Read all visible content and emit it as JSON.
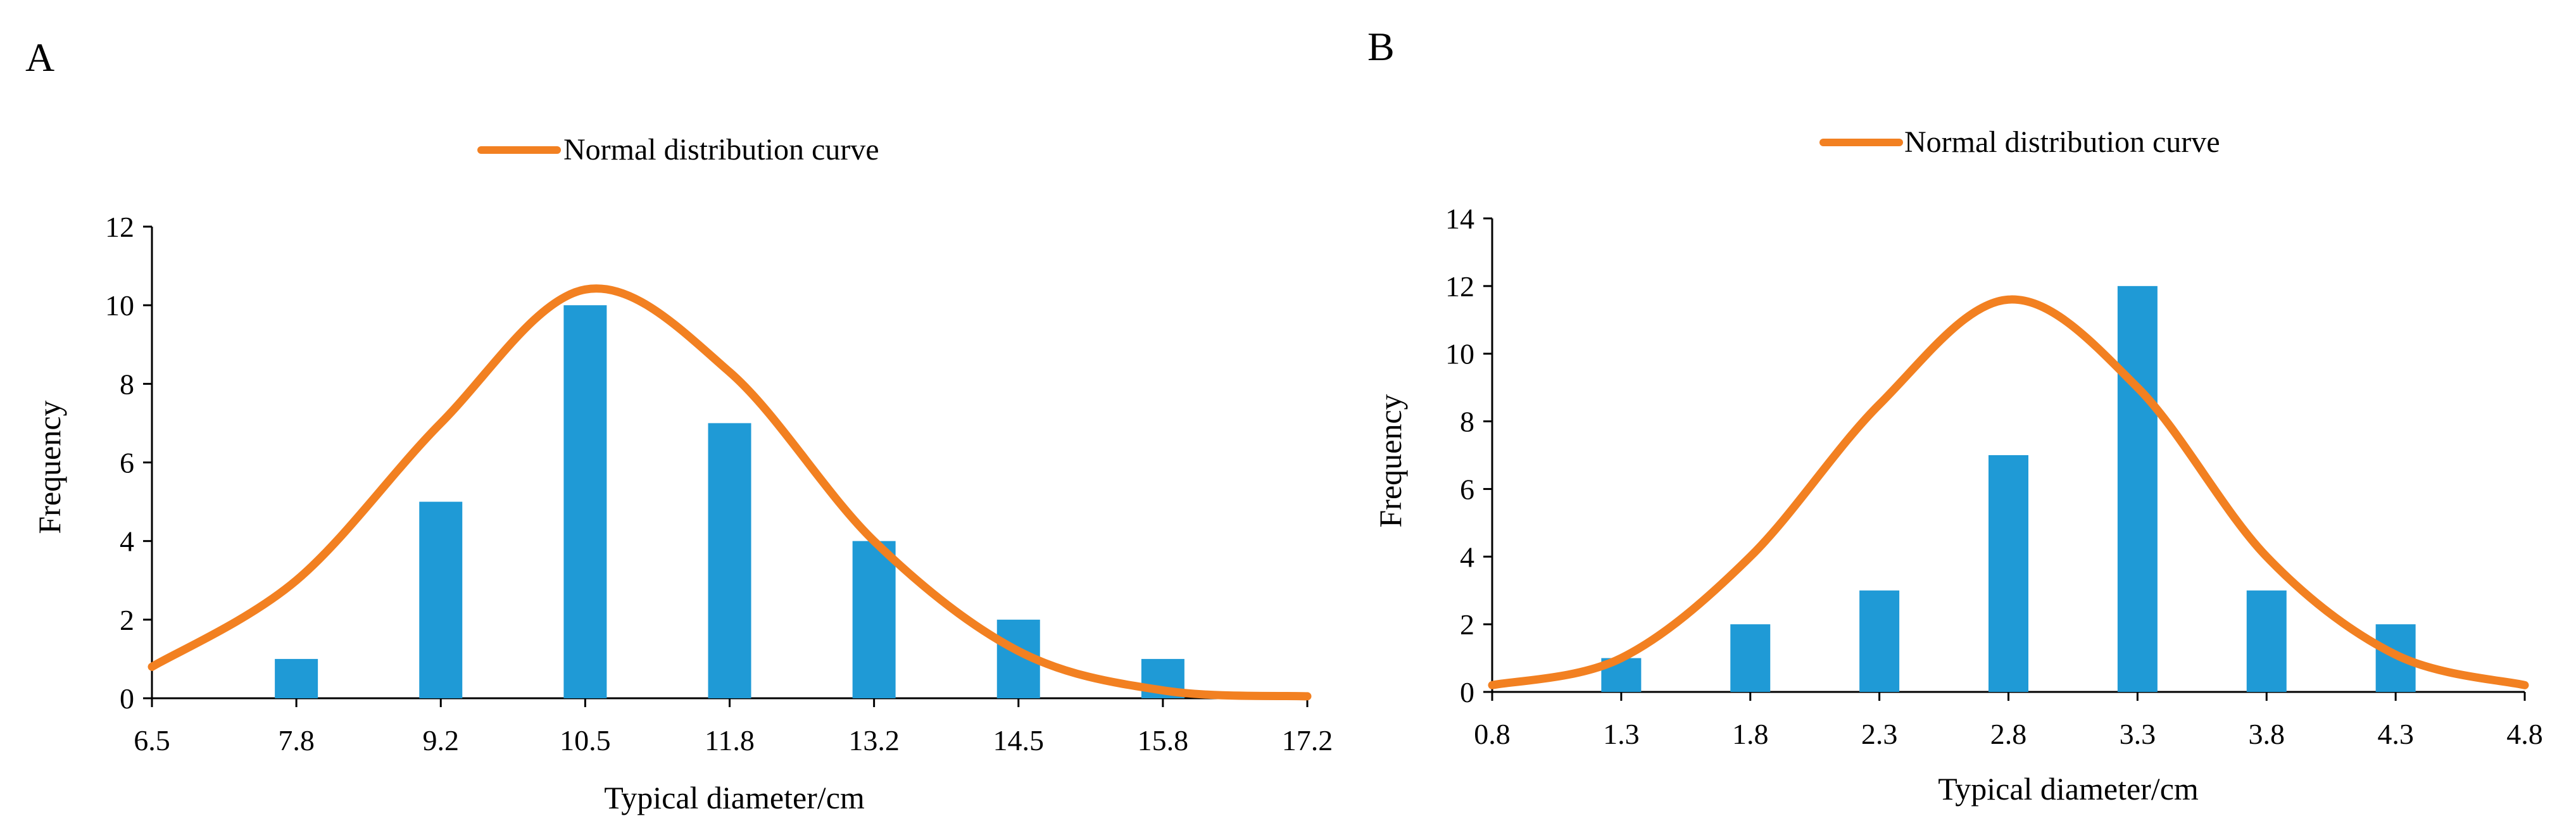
{
  "colors": {
    "bar": "#1F9AD6",
    "curve": "#F28021",
    "axis": "#000000"
  },
  "chart_data": [
    {
      "panel_label": "A",
      "type": "bar",
      "legend_label": "Normal distribution curve",
      "legend_position": "top-center",
      "xlabel": "Typical diameter/cm",
      "ylabel": "Frequency",
      "ylim": [
        0,
        12
      ],
      "ytick_step": 2,
      "y_ticks": [
        "0",
        "2",
        "4",
        "6",
        "8",
        "10",
        "12"
      ],
      "categories": [
        "6.5",
        "7.8",
        "9.2",
        "10.5",
        "11.8",
        "13.2",
        "14.5",
        "15.8",
        "17.2"
      ],
      "values": [
        0,
        1,
        5,
        10,
        7,
        4,
        2,
        1,
        0
      ],
      "curve": [
        0.8,
        3.0,
        7.0,
        10.4,
        8.3,
        4.0,
        1.2,
        0.2,
        0.05
      ],
      "grid": false
    },
    {
      "panel_label": "B",
      "type": "bar",
      "legend_label": "Normal distribution curve",
      "legend_position": "top-center",
      "xlabel": "Typical diameter/cm",
      "ylabel": "Frequency",
      "ylim": [
        0,
        14
      ],
      "ytick_step": 2,
      "y_ticks": [
        "0",
        "2",
        "4",
        "6",
        "8",
        "10",
        "12",
        "14"
      ],
      "categories": [
        "0.8",
        "1.3",
        "1.8",
        "2.3",
        "2.8",
        "3.3",
        "3.8",
        "4.3",
        "4.8"
      ],
      "values": [
        0,
        1,
        2,
        3,
        7,
        12,
        3,
        2,
        0
      ],
      "curve": [
        0.2,
        1.0,
        4.0,
        8.5,
        11.6,
        9.0,
        4.0,
        1.1,
        0.2
      ],
      "grid": false
    }
  ]
}
